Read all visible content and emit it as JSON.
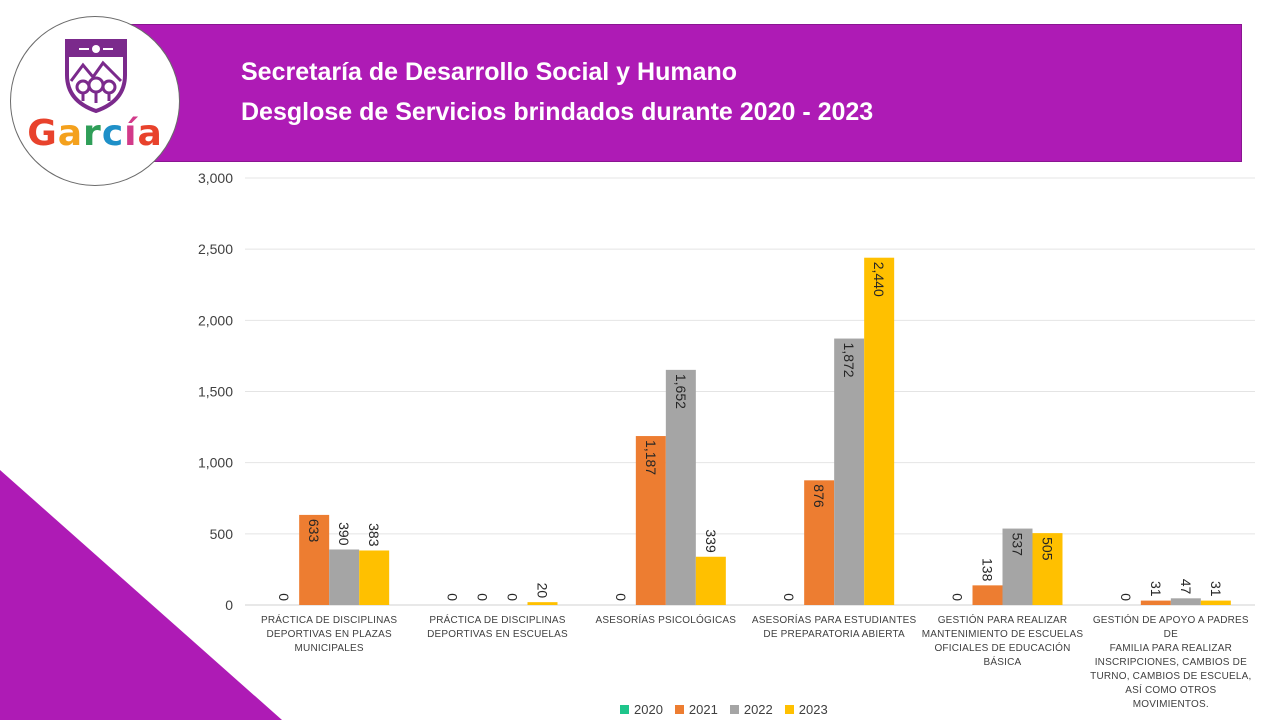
{
  "header": {
    "title_line1": "Secretaría de Desarrollo Social y Humano",
    "title_line2": "Desglose de Servicios brindados durante 2020 - 2023",
    "band_color": "#ae1bb5"
  },
  "logo": {
    "text": "García",
    "letters": [
      "G",
      "a",
      "r",
      "c",
      "í",
      "a"
    ],
    "letter_colors": [
      "#e8422c",
      "#f4a11d",
      "#2f9e58",
      "#1e90c8",
      "#d23a8a",
      "#e8422c"
    ],
    "shield_icon": "shield-crest-icon"
  },
  "chart_data": {
    "type": "bar",
    "title": "",
    "xlabel": "",
    "ylabel": "",
    "ylim": [
      0,
      3000
    ],
    "yticks": [
      0,
      500,
      1000,
      1500,
      2000,
      2500,
      3000
    ],
    "ytick_labels": [
      "0",
      "500",
      "1,000",
      "1,500",
      "2,000",
      "2,500",
      "3,000"
    ],
    "grid": true,
    "legend_position": "bottom",
    "categories": [
      "PRÁCTICA DE DISCIPLINAS DEPORTIVAS EN PLAZAS MUNICIPALES",
      "PRÁCTICA DE DISCIPLINAS DEPORTIVAS EN ESCUELAS",
      "ASESORÍAS PSICOLÓGICAS",
      "ASESORÍAS PARA ESTUDIANTES DE PREPARATORIA ABIERTA",
      "GESTIÓN PARA REALIZAR MANTENIMIENTO DE ESCUELAS OFICIALES DE EDUCACIÓN BÁSICA",
      "GESTIÓN DE APOYO A PADRES DE FAMILIA PARA REALIZAR INSCRIPCIONES, CAMBIOS DE TURNO, CAMBIOS DE ESCUELA, ASÍ COMO OTROS MOVIMIENTOS."
    ],
    "category_lines": [
      [
        "PRÁCTICA DE DISCIPLINAS",
        "DEPORTIVAS EN PLAZAS",
        "MUNICIPALES"
      ],
      [
        "PRÁCTICA DE DISCIPLINAS",
        "DEPORTIVAS EN ESCUELAS"
      ],
      [
        "ASESORÍAS PSICOLÓGICAS"
      ],
      [
        "ASESORÍAS PARA ESTUDIANTES",
        "DE PREPARATORIA ABIERTA"
      ],
      [
        "GESTIÓN PARA REALIZAR",
        "MANTENIMIENTO DE ESCUELAS",
        "OFICIALES DE EDUCACIÓN BÁSICA"
      ],
      [
        "GESTIÓN DE APOYO A PADRES DE",
        "FAMILIA PARA REALIZAR",
        "INSCRIPCIONES, CAMBIOS DE",
        "TURNO, CAMBIOS DE ESCUELA,",
        "ASÍ COMO OTROS MOVIMIENTOS."
      ]
    ],
    "series": [
      {
        "name": "2020",
        "color": "#1fc58b",
        "values": [
          0,
          0,
          0,
          0,
          0,
          0
        ],
        "labels": [
          "0",
          "0",
          "0",
          "0",
          "0",
          "0"
        ]
      },
      {
        "name": "2021",
        "color": "#ed7d31",
        "values": [
          633,
          0,
          1187,
          876,
          138,
          31
        ],
        "labels": [
          "633",
          "0",
          "1,187",
          "876",
          "138",
          "31"
        ]
      },
      {
        "name": "2022",
        "color": "#a5a5a5",
        "values": [
          390,
          0,
          1652,
          1872,
          537,
          47
        ],
        "labels": [
          "390",
          "0",
          "1,652",
          "1,872",
          "537",
          "47"
        ]
      },
      {
        "name": "2023",
        "color": "#ffc000",
        "values": [
          383,
          20,
          339,
          2440,
          505,
          31
        ],
        "labels": [
          "383",
          "20",
          "339",
          "2,440",
          "505",
          "31"
        ]
      }
    ]
  }
}
